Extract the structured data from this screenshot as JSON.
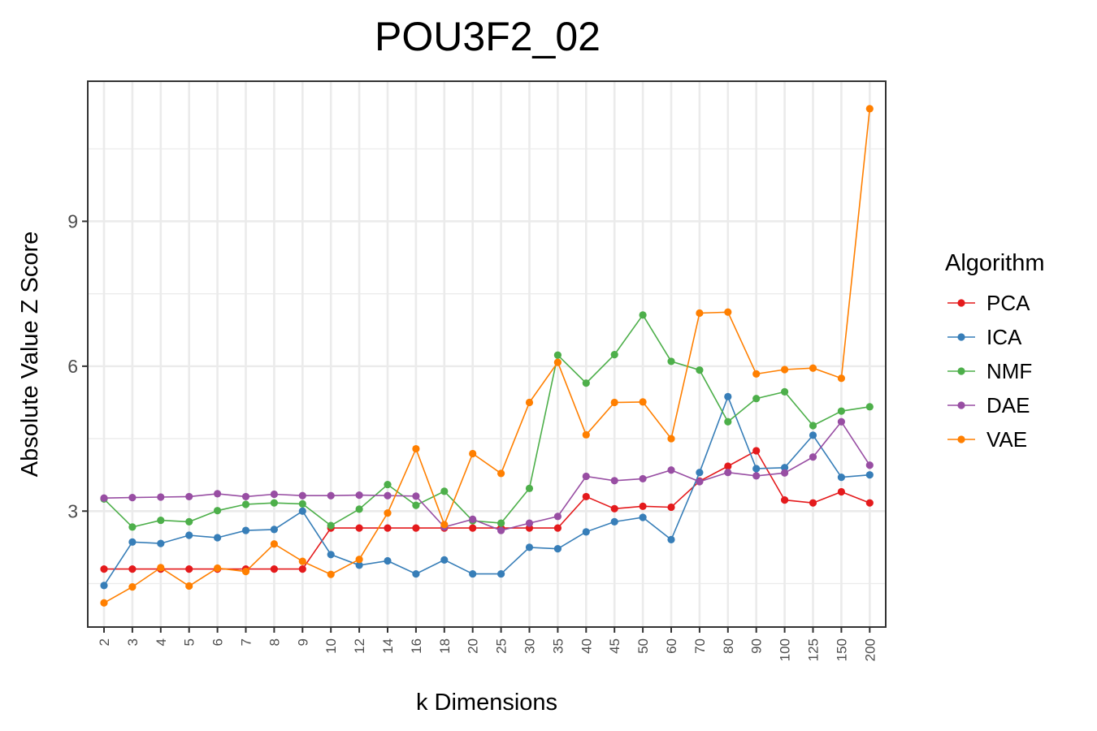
{
  "chart_data": {
    "type": "line",
    "title": "POU3F2_02",
    "xlabel": "k Dimensions",
    "ylabel": "Absolute Value Z Score",
    "categories": [
      "2",
      "3",
      "4",
      "5",
      "6",
      "7",
      "8",
      "9",
      "10",
      "12",
      "14",
      "16",
      "18",
      "20",
      "25",
      "30",
      "35",
      "40",
      "45",
      "50",
      "60",
      "70",
      "80",
      "90",
      "100",
      "125",
      "150",
      "200"
    ],
    "yticks": [
      3,
      6,
      9
    ],
    "ylim": [
      0.6,
      11.9
    ],
    "grid": true,
    "legend": {
      "title": "Algorithm",
      "position": "right"
    },
    "series": [
      {
        "name": "PCA",
        "color": "#E41A1C",
        "values": [
          1.8,
          1.8,
          1.8,
          1.8,
          1.8,
          1.8,
          1.8,
          1.8,
          2.65,
          2.65,
          2.65,
          2.65,
          2.65,
          2.65,
          2.65,
          2.65,
          2.65,
          3.3,
          3.05,
          3.1,
          3.08,
          3.62,
          3.93,
          4.25,
          3.23,
          3.17,
          3.4,
          3.17
        ]
      },
      {
        "name": "ICA",
        "color": "#377EB8",
        "values": [
          1.46,
          2.36,
          2.33,
          2.5,
          2.45,
          2.6,
          2.62,
          3.0,
          2.1,
          1.88,
          1.97,
          1.7,
          1.99,
          1.7,
          1.7,
          2.25,
          2.22,
          2.57,
          2.78,
          2.87,
          2.41,
          3.8,
          5.37,
          3.88,
          3.9,
          4.57,
          3.7,
          3.75
        ]
      },
      {
        "name": "NMF",
        "color": "#4DAF4A",
        "values": [
          3.25,
          2.67,
          2.81,
          2.78,
          3.01,
          3.14,
          3.17,
          3.15,
          2.7,
          3.04,
          3.55,
          3.12,
          3.41,
          2.8,
          2.75,
          3.47,
          6.23,
          5.65,
          6.24,
          7.06,
          6.1,
          5.92,
          4.85,
          5.33,
          5.47,
          4.77,
          5.07,
          5.16
        ]
      },
      {
        "name": "DAE",
        "color": "#984EA3",
        "values": [
          3.27,
          3.28,
          3.29,
          3.3,
          3.36,
          3.3,
          3.35,
          3.32,
          3.32,
          3.33,
          3.32,
          3.31,
          2.67,
          2.83,
          2.6,
          2.75,
          2.89,
          3.72,
          3.63,
          3.67,
          3.85,
          3.61,
          3.8,
          3.73,
          3.79,
          4.12,
          4.85,
          3.95
        ]
      },
      {
        "name": "VAE",
        "color": "#FF7F00",
        "values": [
          1.1,
          1.43,
          1.83,
          1.45,
          1.82,
          1.75,
          2.32,
          1.96,
          1.69,
          2.0,
          2.96,
          4.29,
          2.72,
          4.19,
          3.78,
          5.25,
          6.08,
          4.58,
          5.25,
          5.26,
          4.5,
          7.1,
          7.12,
          5.84,
          5.93,
          5.96,
          5.75,
          11.33
        ]
      }
    ]
  }
}
